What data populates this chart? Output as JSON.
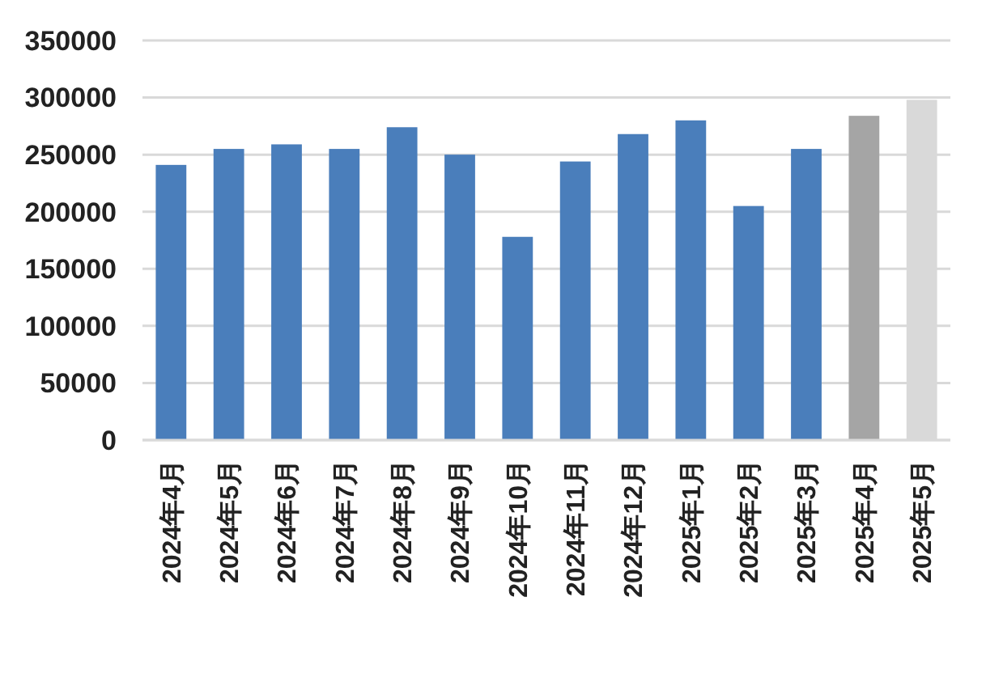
{
  "chart_data": {
    "type": "bar",
    "categories": [
      "2024年4月",
      "2024年5月",
      "2024年6月",
      "2024年7月",
      "2024年8月",
      "2024年9月",
      "2024年10月",
      "2024年11月",
      "2024年12月",
      "2025年1月",
      "2025年2月",
      "2025年3月",
      "2025年4月",
      "2025年5月"
    ],
    "values": [
      241000,
      255000,
      259000,
      255000,
      274000,
      250000,
      178000,
      244000,
      268000,
      280000,
      205000,
      255000,
      284000,
      298000
    ],
    "colors": [
      "#4a7ebb",
      "#4a7ebb",
      "#4a7ebb",
      "#4a7ebb",
      "#4a7ebb",
      "#4a7ebb",
      "#4a7ebb",
      "#4a7ebb",
      "#4a7ebb",
      "#4a7ebb",
      "#4a7ebb",
      "#4a7ebb",
      "#a5a5a5",
      "#d9d9d9"
    ],
    "ylim": [
      0,
      350000
    ],
    "yticks": [
      0,
      50000,
      100000,
      150000,
      200000,
      250000,
      300000,
      350000
    ],
    "grid": "y"
  }
}
